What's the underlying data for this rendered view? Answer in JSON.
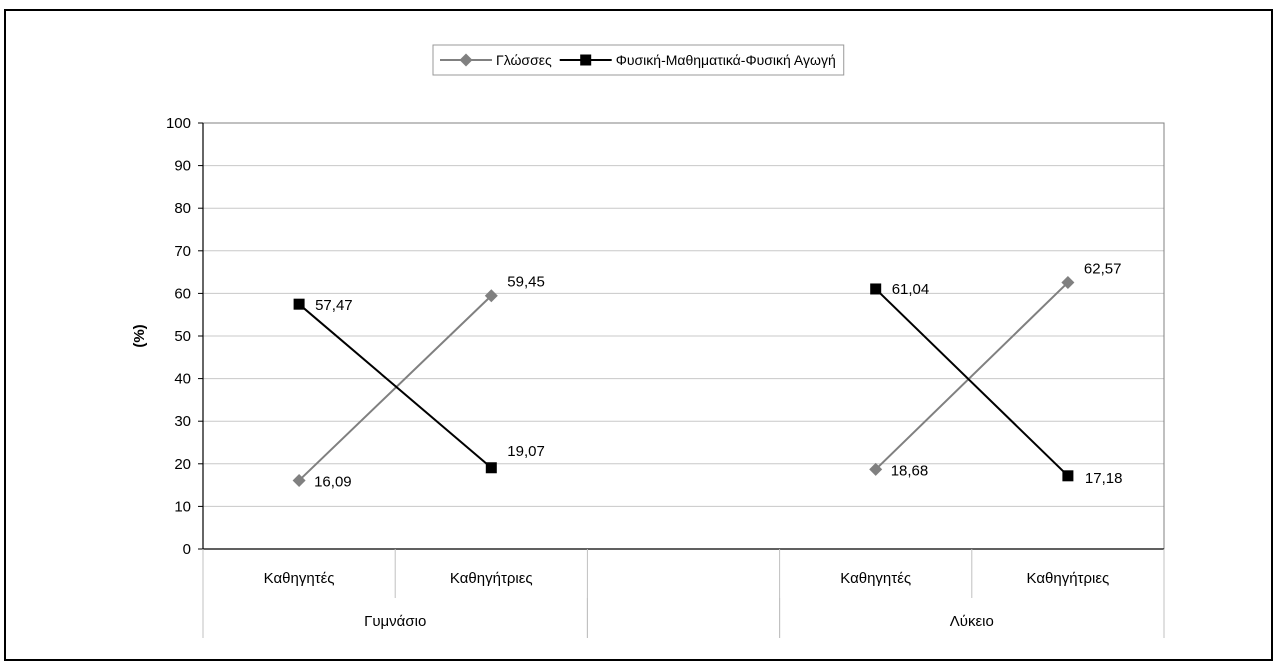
{
  "chart_data": {
    "type": "line",
    "ylabel": "(%)",
    "ylim": [
      0,
      100
    ],
    "yticks": [
      0,
      10,
      20,
      30,
      40,
      50,
      60,
      70,
      80,
      90,
      100
    ],
    "grid": true,
    "legend_position": "top-center",
    "groups": [
      {
        "name": "Γυμνάσιο",
        "categories": [
          "Καθηγητές",
          "Καθηγήτριες"
        ]
      },
      {
        "name": "",
        "categories": [
          ""
        ]
      },
      {
        "name": "Λύκειο",
        "categories": [
          "Καθηγητές",
          "Καθηγήτριες"
        ]
      }
    ],
    "series": [
      {
        "name": "Γλώσσες",
        "color": "#808080",
        "marker": "diamond",
        "segments": [
          {
            "group": 0,
            "values": [
              16.09,
              59.45
            ],
            "labels": [
              "16,09",
              "59,45"
            ]
          },
          {
            "group": 2,
            "values": [
              18.68,
              62.57
            ],
            "labels": [
              "18,68",
              "62,57"
            ]
          }
        ]
      },
      {
        "name": "Φυσική-Μαθηματικά-Φυσική Αγωγή",
        "color": "#000000",
        "marker": "square",
        "segments": [
          {
            "group": 0,
            "values": [
              57.47,
              19.07
            ],
            "labels": [
              "57,47",
              "19,07"
            ]
          },
          {
            "group": 2,
            "values": [
              61.04,
              17.18
            ],
            "labels": [
              "61,04",
              "17,18"
            ]
          }
        ]
      }
    ]
  }
}
